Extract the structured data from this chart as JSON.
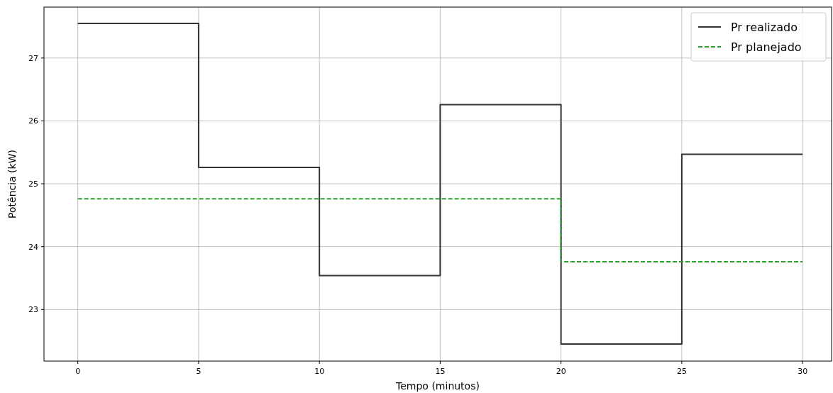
{
  "chart_data": {
    "type": "step",
    "xlabel": "Tempo (minutos)",
    "ylabel": "Potência (kW)",
    "x": [
      0,
      5,
      10,
      15,
      20,
      25,
      30
    ],
    "series": [
      {
        "name": "Pr realizado",
        "color": "#333333",
        "values": [
          27.55,
          25.26,
          23.54,
          26.26,
          22.45,
          25.47,
          25.47
        ],
        "line_style": "solid"
      },
      {
        "name": "Pr planejado",
        "color": "#2ca02c",
        "values": [
          24.76,
          24.76,
          24.76,
          24.76,
          23.76,
          23.76,
          23.76
        ],
        "line_style": "dashed"
      }
    ],
    "xlim": [
      -1.4,
      31.2
    ],
    "ylim": [
      22.18,
      27.81
    ],
    "xticks": [
      0,
      5,
      10,
      15,
      20,
      25,
      30
    ],
    "yticks": [
      23,
      24,
      25,
      26,
      27
    ],
    "grid": true,
    "legend": "top right"
  }
}
